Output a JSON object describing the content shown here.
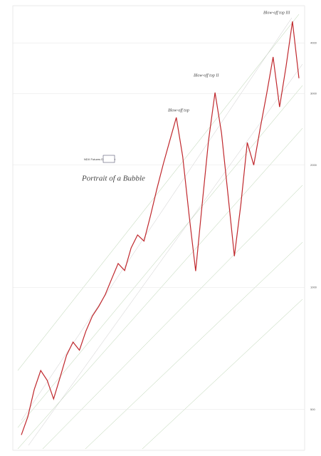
{
  "chart_data": {
    "type": "line",
    "title": "Portrait of a Bubble",
    "subtitle": "NDX Futures Daily Chart",
    "annotations": [
      "Blow-off top",
      "Blow-off top II",
      "Blow-off top III"
    ],
    "categories": [
      null,
      null,
      null,
      null,
      null,
      null,
      null,
      null,
      null,
      null,
      null,
      null,
      null,
      null,
      null,
      null,
      null,
      null,
      null,
      null,
      null,
      null,
      null,
      null,
      null,
      null,
      null,
      null,
      null,
      null,
      null,
      null,
      null,
      null,
      null,
      null,
      null,
      null,
      null,
      null,
      null,
      null,
      null,
      null
    ],
    "series": [
      {
        "name": "NDX",
        "color": "#c0282d",
        "values": [
          433,
          480,
          560,
          624,
          590,
          531,
          600,
          680,
          733,
          700,
          780,
          850,
          898,
          960,
          1050,
          1145,
          1100,
          1250,
          1346,
          1300,
          1500,
          1750,
          2015,
          2300,
          2620,
          2100,
          1500,
          1097,
          1600,
          2300,
          3018,
          2400,
          1700,
          1193,
          1600,
          2273,
          2000,
          2465,
          3000,
          3693,
          2781,
          3500,
          4518,
          3274
        ]
      }
    ],
    "log_scale": true,
    "ylim": [
      400,
      4900
    ],
    "yticks": [
      500,
      1000,
      2000,
      3000,
      4000
    ],
    "grid": true
  }
}
